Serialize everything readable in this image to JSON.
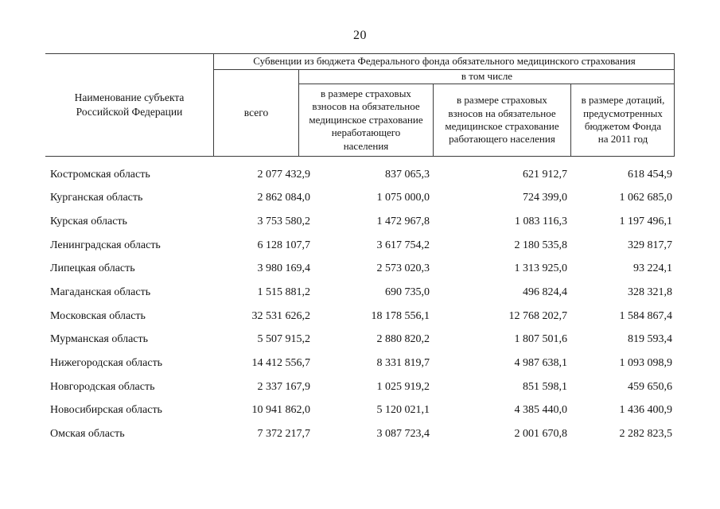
{
  "page": {
    "number": "20"
  },
  "table": {
    "header": {
      "region": "Наименование субъекта\nРоссийской Федерации",
      "group_title": "Субвенции из бюджета Федерального фонда обязательного медицинского страхования",
      "total": "всего",
      "including": "в том числе",
      "nonworking": "в размере страховых\nвзносов на обязательное\nмедицинское страхование\nнеработающего\nнаселения",
      "working": "в размере страховых\nвзносов на обязательное\nмедицинское страхование\nработающего населения",
      "subsidy": "в размере дотаций,\nпредусмотренных\nбюджетом Фонда\nна 2011 год"
    },
    "rows": [
      [
        "Костромская область",
        "2 077 432,9",
        "837 065,3",
        "621 912,7",
        "618 454,9"
      ],
      [
        "Курганская область",
        "2 862 084,0",
        "1 075 000,0",
        "724 399,0",
        "1 062 685,0"
      ],
      [
        "Курская область",
        "3 753 580,2",
        "1 472 967,8",
        "1 083 116,3",
        "1 197 496,1"
      ],
      [
        "Ленинградская область",
        "6 128 107,7",
        "3 617 754,2",
        "2 180 535,8",
        "329 817,7"
      ],
      [
        "Липецкая область",
        "3 980 169,4",
        "2 573 020,3",
        "1 313 925,0",
        "93 224,1"
      ],
      [
        "Магаданская область",
        "1 515 881,2",
        "690 735,0",
        "496 824,4",
        "328 321,8"
      ],
      [
        "Московская область",
        "32 531 626,2",
        "18 178 556,1",
        "12 768 202,7",
        "1 584 867,4"
      ],
      [
        "Мурманская область",
        "5 507 915,2",
        "2 880 820,2",
        "1 807 501,6",
        "819 593,4"
      ],
      [
        "Нижегородская область",
        "14 412 556,7",
        "8 331 819,7",
        "4 987 638,1",
        "1 093 098,9"
      ],
      [
        "Новгородская область",
        "2 337 167,9",
        "1 025 919,2",
        "851 598,1",
        "459 650,6"
      ],
      [
        "Новосибирская область",
        "10 941 862,0",
        "5 120 021,1",
        "4 385 440,0",
        "1 436 400,9"
      ],
      [
        "Омская область",
        "7 372 217,7",
        "3 087 723,4",
        "2 001 670,8",
        "2 282 823,5"
      ]
    ]
  }
}
